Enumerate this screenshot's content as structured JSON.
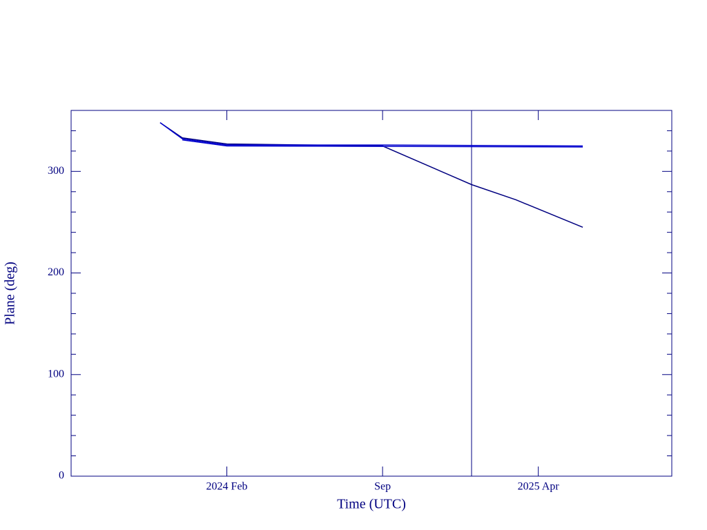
{
  "chart_data": {
    "type": "line",
    "xlabel": "Time (UTC)",
    "ylabel": "Plane (deg)",
    "xlim": [
      "2023-07",
      "2025-10"
    ],
    "xticks": [
      {
        "value": "2024-02",
        "label": "2024 Feb"
      },
      {
        "value": "2024-09",
        "label": "Sep"
      },
      {
        "value": "2025-04",
        "label": "2025 Apr"
      }
    ],
    "ylim": [
      0,
      360
    ],
    "yticks": [
      0,
      100,
      200,
      300
    ],
    "yminor": [
      20,
      40,
      60,
      80,
      120,
      140,
      160,
      180,
      220,
      240,
      260,
      280,
      320,
      340
    ],
    "vline": "2025-01",
    "axis_color": "#000080",
    "series": [
      {
        "color": "#000080",
        "x": [
          "2023-11",
          "2023-12",
          "2024-02",
          "2024-09",
          "2025-01",
          "2025-03",
          "2025-06"
        ],
        "values": [
          348,
          333,
          327,
          325,
          287,
          272,
          245
        ]
      },
      {
        "color": "#0000cd",
        "x": [
          "2023-11",
          "2023-12",
          "2024-02",
          "2024-09",
          "2025-06"
        ],
        "values": [
          348,
          332,
          326,
          326,
          325
        ]
      },
      {
        "color": "#0000cd",
        "x": [
          "2023-12",
          "2024-02",
          "2025-06"
        ],
        "values": [
          331,
          325,
          324
        ]
      }
    ]
  }
}
